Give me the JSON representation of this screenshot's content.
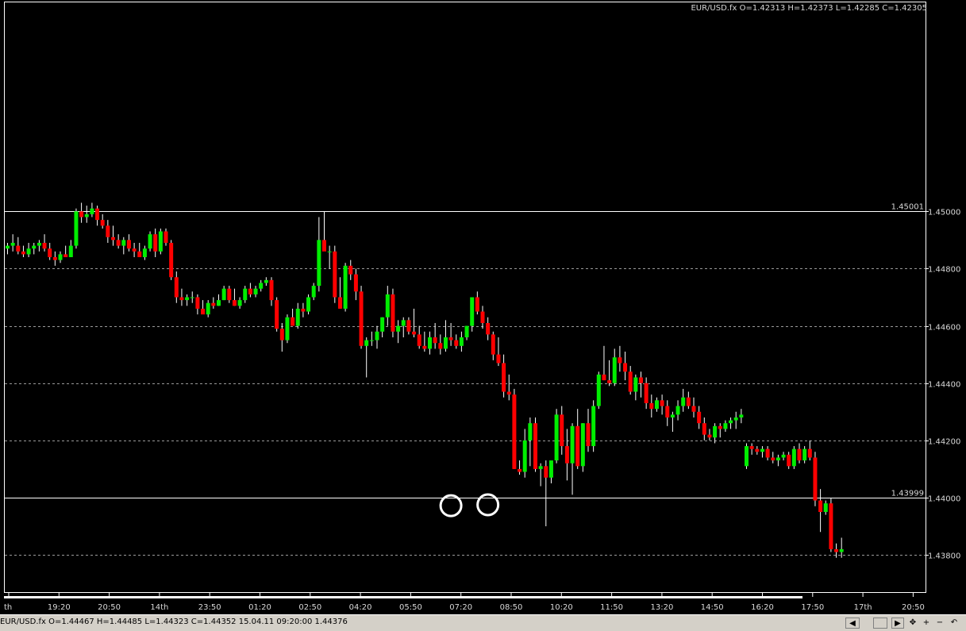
{
  "header": {
    "info": "EUR/USD.fx O=1.42313 H=1.42373 L=1.42285 C=1.42305"
  },
  "status_bar": {
    "info": "EUR/USD.fx O=1.44467 H=1.44485 L=1.44323 C=1.44352  15.04.11 09:20:00 1.44376",
    "buttons": [
      {
        "name": "scroll-left-button",
        "icon": "arrow-left-icon",
        "label": "◀"
      },
      {
        "name": "scroll-right-button",
        "icon": "arrow-right-icon",
        "label": "▶"
      },
      {
        "name": "move-tool-button",
        "icon": "move-cross-icon",
        "label": "✥"
      },
      {
        "name": "zoom-in-button",
        "icon": "plus-icon",
        "label": "+"
      },
      {
        "name": "zoom-out-button",
        "icon": "minus-icon",
        "label": "−"
      },
      {
        "name": "reset-button",
        "icon": "undo-arrow-icon",
        "label": "↶"
      }
    ]
  },
  "colors": {
    "background": "#000000",
    "frame": "#ffffff",
    "grid": "#9a9a9a",
    "up": "#00ee00",
    "down": "#ff0000",
    "wick": "#ffffff",
    "marker": "#ffffff",
    "text": "#d8d8d8"
  },
  "chart_data": {
    "type": "candlestick",
    "symbol": "EUR/USD.fx",
    "ylim": [
      1.4367,
      1.4573
    ],
    "y_ticks": [
      {
        "value": 1.45,
        "label": "1.45000"
      },
      {
        "value": 1.448,
        "label": "1.44800"
      },
      {
        "value": 1.446,
        "label": "1.44600"
      },
      {
        "value": 1.444,
        "label": "1.44400"
      },
      {
        "value": 1.442,
        "label": "1.44200"
      },
      {
        "value": 1.44,
        "label": "1.44000"
      },
      {
        "value": 1.438,
        "label": "1.43800"
      }
    ],
    "x_ticks": [
      "th",
      "19:20",
      "20:50",
      "14th",
      "23:50",
      "01:20",
      "02:50",
      "04:20",
      "05:50",
      "07:20",
      "08:50",
      "10:20",
      "11:50",
      "13:20",
      "14:50",
      "16:20",
      "17:50",
      "17th",
      "20:50"
    ],
    "horizontal_lines": [
      {
        "value": 1.45001,
        "label": "1.45001"
      },
      {
        "value": 1.43999,
        "label": "1.43999"
      }
    ],
    "markers": [
      {
        "index": 84,
        "value": 1.43972
      },
      {
        "index": 91,
        "value": 1.43975
      }
    ],
    "candles": [
      [
        1.4487,
        1.4489,
        1.4485,
        1.4488
      ],
      [
        1.4488,
        1.4492,
        1.4486,
        1.4489
      ],
      [
        1.4488,
        1.4491,
        1.4485,
        1.4486
      ],
      [
        1.4486,
        1.4488,
        1.4484,
        1.4485
      ],
      [
        1.4485,
        1.4489,
        1.4484,
        1.4487
      ],
      [
        1.4487,
        1.4489,
        1.4485,
        1.4488
      ],
      [
        1.4488,
        1.449,
        1.4486,
        1.4489
      ],
      [
        1.4489,
        1.4492,
        1.4486,
        1.4487
      ],
      [
        1.4487,
        1.4489,
        1.4483,
        1.4484
      ],
      [
        1.4484,
        1.4486,
        1.4481,
        1.4483
      ],
      [
        1.4483,
        1.4486,
        1.4482,
        1.4485
      ],
      [
        1.4485,
        1.4488,
        1.4484,
        1.4484
      ],
      [
        1.4484,
        1.449,
        1.4484,
        1.4488
      ],
      [
        1.4488,
        1.4501,
        1.4487,
        1.45
      ],
      [
        1.45,
        1.4503,
        1.4496,
        1.4498
      ],
      [
        1.4498,
        1.4502,
        1.4496,
        1.4499
      ],
      [
        1.4499,
        1.4503,
        1.4498,
        1.4501
      ],
      [
        1.4501,
        1.4502,
        1.4495,
        1.4497
      ],
      [
        1.4497,
        1.4499,
        1.4494,
        1.4495
      ],
      [
        1.4495,
        1.4497,
        1.4489,
        1.4491
      ],
      [
        1.4491,
        1.4495,
        1.4488,
        1.449
      ],
      [
        1.449,
        1.4492,
        1.4487,
        1.4488
      ],
      [
        1.4488,
        1.4491,
        1.4485,
        1.449
      ],
      [
        1.449,
        1.4492,
        1.4486,
        1.4487
      ],
      [
        1.4487,
        1.4489,
        1.4484,
        1.4486
      ],
      [
        1.4486,
        1.4489,
        1.4485,
        1.4484
      ],
      [
        1.4484,
        1.4488,
        1.4483,
        1.4487
      ],
      [
        1.4487,
        1.4493,
        1.4486,
        1.4492
      ],
      [
        1.4492,
        1.4494,
        1.4484,
        1.4486
      ],
      [
        1.4486,
        1.4494,
        1.4485,
        1.4493
      ],
      [
        1.4493,
        1.4494,
        1.4488,
        1.4489
      ],
      [
        1.4489,
        1.449,
        1.4476,
        1.4477
      ],
      [
        1.4477,
        1.4479,
        1.4468,
        1.447
      ],
      [
        1.447,
        1.4473,
        1.4467,
        1.4469
      ],
      [
        1.4469,
        1.4471,
        1.4467,
        1.447
      ],
      [
        1.447,
        1.4472,
        1.4468,
        1.447
      ],
      [
        1.447,
        1.4471,
        1.4464,
        1.4466
      ],
      [
        1.4466,
        1.4469,
        1.4465,
        1.4464
      ],
      [
        1.4464,
        1.4469,
        1.4463,
        1.4468
      ],
      [
        1.4468,
        1.447,
        1.4466,
        1.4467
      ],
      [
        1.4467,
        1.4471,
        1.4467,
        1.4469
      ],
      [
        1.4469,
        1.4474,
        1.4469,
        1.4473
      ],
      [
        1.4473,
        1.4474,
        1.4468,
        1.4469
      ],
      [
        1.4469,
        1.4473,
        1.4467,
        1.4467
      ],
      [
        1.4467,
        1.447,
        1.4466,
        1.4469
      ],
      [
        1.4469,
        1.4474,
        1.4468,
        1.4473
      ],
      [
        1.4473,
        1.4475,
        1.447,
        1.4471
      ],
      [
        1.4471,
        1.4474,
        1.447,
        1.4473
      ],
      [
        1.4473,
        1.4476,
        1.4472,
        1.4475
      ],
      [
        1.4475,
        1.4477,
        1.4474,
        1.4476
      ],
      [
        1.4476,
        1.4477,
        1.4467,
        1.4469
      ],
      [
        1.4469,
        1.447,
        1.4458,
        1.4459
      ],
      [
        1.4459,
        1.4461,
        1.4451,
        1.4455
      ],
      [
        1.4455,
        1.4464,
        1.4454,
        1.4463
      ],
      [
        1.4463,
        1.4466,
        1.4461,
        1.446
      ],
      [
        1.446,
        1.4468,
        1.4459,
        1.4466
      ],
      [
        1.4466,
        1.4468,
        1.4463,
        1.4465
      ],
      [
        1.4465,
        1.4471,
        1.4464,
        1.447
      ],
      [
        1.447,
        1.4475,
        1.4469,
        1.4474
      ],
      [
        1.4474,
        1.4498,
        1.4472,
        1.449
      ],
      [
        1.449,
        1.45,
        1.4487,
        1.4486
      ],
      [
        1.4486,
        1.4488,
        1.448,
        1.4486
      ],
      [
        1.4486,
        1.4488,
        1.4468,
        1.447
      ],
      [
        1.447,
        1.4477,
        1.4466,
        1.4466
      ],
      [
        1.4466,
        1.4482,
        1.4465,
        1.4481
      ],
      [
        1.4481,
        1.4483,
        1.4476,
        1.4478
      ],
      [
        1.4478,
        1.448,
        1.4469,
        1.4472
      ],
      [
        1.4472,
        1.4474,
        1.4452,
        1.4453
      ],
      [
        1.4453,
        1.4456,
        1.4442,
        1.4455
      ],
      [
        1.4455,
        1.4458,
        1.4453,
        1.4455
      ],
      [
        1.4455,
        1.446,
        1.4452,
        1.4458
      ],
      [
        1.4458,
        1.4463,
        1.4456,
        1.4463
      ],
      [
        1.4463,
        1.4474,
        1.446,
        1.4471
      ],
      [
        1.4471,
        1.4473,
        1.4456,
        1.4458
      ],
      [
        1.4458,
        1.4462,
        1.4454,
        1.446
      ],
      [
        1.446,
        1.4463,
        1.4456,
        1.4462
      ],
      [
        1.4462,
        1.4463,
        1.4457,
        1.4458
      ],
      [
        1.4458,
        1.4466,
        1.4456,
        1.4457
      ],
      [
        1.4457,
        1.446,
        1.4452,
        1.4453
      ],
      [
        1.4453,
        1.4458,
        1.4451,
        1.4452
      ],
      [
        1.4452,
        1.4458,
        1.445,
        1.4456
      ],
      [
        1.4456,
        1.4461,
        1.4452,
        1.4454
      ],
      [
        1.4454,
        1.4457,
        1.445,
        1.4452
      ],
      [
        1.4452,
        1.4462,
        1.4451,
        1.4456
      ],
      [
        1.4456,
        1.4461,
        1.4453,
        1.4455
      ],
      [
        1.4455,
        1.4457,
        1.4452,
        1.4453
      ],
      [
        1.4453,
        1.4458,
        1.4451,
        1.4456
      ],
      [
        1.4456,
        1.446,
        1.4455,
        1.446
      ],
      [
        1.446,
        1.447,
        1.4458,
        1.447
      ],
      [
        1.447,
        1.4472,
        1.4464,
        1.4465
      ],
      [
        1.4465,
        1.4467,
        1.4459,
        1.4461
      ],
      [
        1.4461,
        1.4463,
        1.4455,
        1.4457
      ],
      [
        1.4457,
        1.4458,
        1.4448,
        1.445
      ],
      [
        1.445,
        1.4456,
        1.4446,
        1.4447
      ],
      [
        1.4447,
        1.445,
        1.4435,
        1.4437
      ],
      [
        1.4437,
        1.4443,
        1.4434,
        1.4436
      ],
      [
        1.4436,
        1.4438,
        1.441,
        1.441
      ],
      [
        1.441,
        1.4413,
        1.4408,
        1.4409
      ],
      [
        1.4409,
        1.4424,
        1.4407,
        1.442
      ],
      [
        1.442,
        1.4428,
        1.4411,
        1.4426
      ],
      [
        1.4426,
        1.4428,
        1.4409,
        1.441
      ],
      [
        1.441,
        1.4412,
        1.4404,
        1.4411
      ],
      [
        1.4411,
        1.4413,
        1.439,
        1.4407
      ],
      [
        1.4407,
        1.4412,
        1.4405,
        1.4413
      ],
      [
        1.4413,
        1.4431,
        1.4412,
        1.4429
      ],
      [
        1.4429,
        1.4432,
        1.4415,
        1.4418
      ],
      [
        1.4418,
        1.4424,
        1.4406,
        1.4412
      ],
      [
        1.4412,
        1.4426,
        1.4401,
        1.4425
      ],
      [
        1.4425,
        1.4431,
        1.441,
        1.4411
      ],
      [
        1.4411,
        1.4426,
        1.4409,
        1.4426
      ],
      [
        1.4426,
        1.4431,
        1.4416,
        1.4418
      ],
      [
        1.4418,
        1.4434,
        1.4416,
        1.4432
      ],
      [
        1.4432,
        1.4444,
        1.4431,
        1.4443
      ],
      [
        1.4443,
        1.4453,
        1.4441,
        1.4441
      ],
      [
        1.4441,
        1.4448,
        1.4439,
        1.444
      ],
      [
        1.444,
        1.4452,
        1.4439,
        1.4449
      ],
      [
        1.4449,
        1.4453,
        1.4444,
        1.4447
      ],
      [
        1.4447,
        1.4451,
        1.4441,
        1.4444
      ],
      [
        1.4444,
        1.4446,
        1.4436,
        1.4437
      ],
      [
        1.4437,
        1.4443,
        1.4434,
        1.4442
      ],
      [
        1.4442,
        1.4444,
        1.4435,
        1.444
      ],
      [
        1.444,
        1.4442,
        1.4431,
        1.4433
      ],
      [
        1.4433,
        1.4436,
        1.4428,
        1.4431
      ],
      [
        1.4431,
        1.4435,
        1.443,
        1.4434
      ],
      [
        1.4434,
        1.4436,
        1.4429,
        1.4432
      ],
      [
        1.4432,
        1.4434,
        1.4425,
        1.4428
      ],
      [
        1.4428,
        1.443,
        1.4423,
        1.4429
      ],
      [
        1.4429,
        1.4434,
        1.4427,
        1.4432
      ],
      [
        1.4432,
        1.4438,
        1.443,
        1.4435
      ],
      [
        1.4435,
        1.4437,
        1.4431,
        1.4432
      ],
      [
        1.4432,
        1.4435,
        1.4428,
        1.443
      ],
      [
        1.443,
        1.4432,
        1.4424,
        1.4426
      ],
      [
        1.4426,
        1.4428,
        1.442,
        1.4422
      ],
      [
        1.4422,
        1.4424,
        1.442,
        1.4421
      ],
      [
        1.4421,
        1.4426,
        1.4419,
        1.4425
      ],
      [
        1.4425,
        1.4426,
        1.4421,
        1.4424
      ],
      [
        1.4424,
        1.4427,
        1.4423,
        1.4426
      ],
      [
        1.4426,
        1.4428,
        1.4424,
        1.4427
      ],
      [
        1.4427,
        1.443,
        1.4424,
        1.4428
      ],
      [
        1.4428,
        1.4431,
        1.4426,
        1.4429
      ],
      [
        1.4411,
        1.4419,
        1.441,
        1.4418
      ],
      [
        1.4418,
        1.4419,
        1.4415,
        1.4417
      ],
      [
        1.4417,
        1.4418,
        1.4415,
        1.4416
      ],
      [
        1.4416,
        1.4418,
        1.4414,
        1.4417
      ],
      [
        1.4417,
        1.4418,
        1.4413,
        1.4414
      ],
      [
        1.4414,
        1.4416,
        1.4412,
        1.4413
      ],
      [
        1.4413,
        1.4415,
        1.4411,
        1.4414
      ],
      [
        1.4414,
        1.4416,
        1.4413,
        1.4415
      ],
      [
        1.4415,
        1.4416,
        1.441,
        1.4411
      ],
      [
        1.4411,
        1.4418,
        1.441,
        1.4417
      ],
      [
        1.4417,
        1.4419,
        1.4412,
        1.4413
      ],
      [
        1.4413,
        1.4418,
        1.4412,
        1.4417
      ],
      [
        1.4417,
        1.442,
        1.4413,
        1.4414
      ],
      [
        1.4414,
        1.4416,
        1.4397,
        1.4399
      ],
      [
        1.4399,
        1.4403,
        1.4388,
        1.4395
      ],
      [
        1.4395,
        1.4399,
        1.4394,
        1.4398
      ],
      [
        1.4398,
        1.44,
        1.4381,
        1.4382
      ],
      [
        1.4382,
        1.4384,
        1.4379,
        1.4381
      ],
      [
        1.4381,
        1.4386,
        1.4379,
        1.4382
      ]
    ]
  }
}
